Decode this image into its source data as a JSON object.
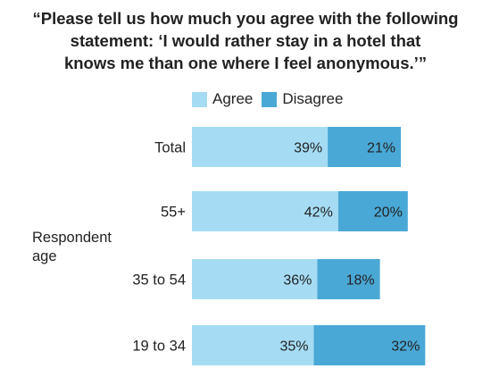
{
  "chart_data": {
    "type": "bar",
    "orientation": "horizontal",
    "stacked": true,
    "title_lines": [
      "“Please tell us how much you agree with the following",
      "statement: ‘I would rather stay in a hotel that",
      "knows me than one where I feel anonymous.’”"
    ],
    "ylabel_lines": [
      "Respondent",
      "age"
    ],
    "categories": [
      "Total",
      "55+",
      "35 to 54",
      "19 to 34"
    ],
    "series": [
      {
        "name": "Agree",
        "color": "#a5dcf4",
        "values": [
          39,
          42,
          36,
          35
        ],
        "labels": [
          "39%",
          "42%",
          "36%",
          "35%"
        ]
      },
      {
        "name": "Disagree",
        "color": "#4aa8d6",
        "values": [
          21,
          20,
          18,
          32
        ],
        "labels": [
          "21%",
          "20%",
          "18%",
          "32%"
        ]
      }
    ],
    "legend_position": "top",
    "grid": false,
    "xlim": [
      0,
      100
    ]
  }
}
